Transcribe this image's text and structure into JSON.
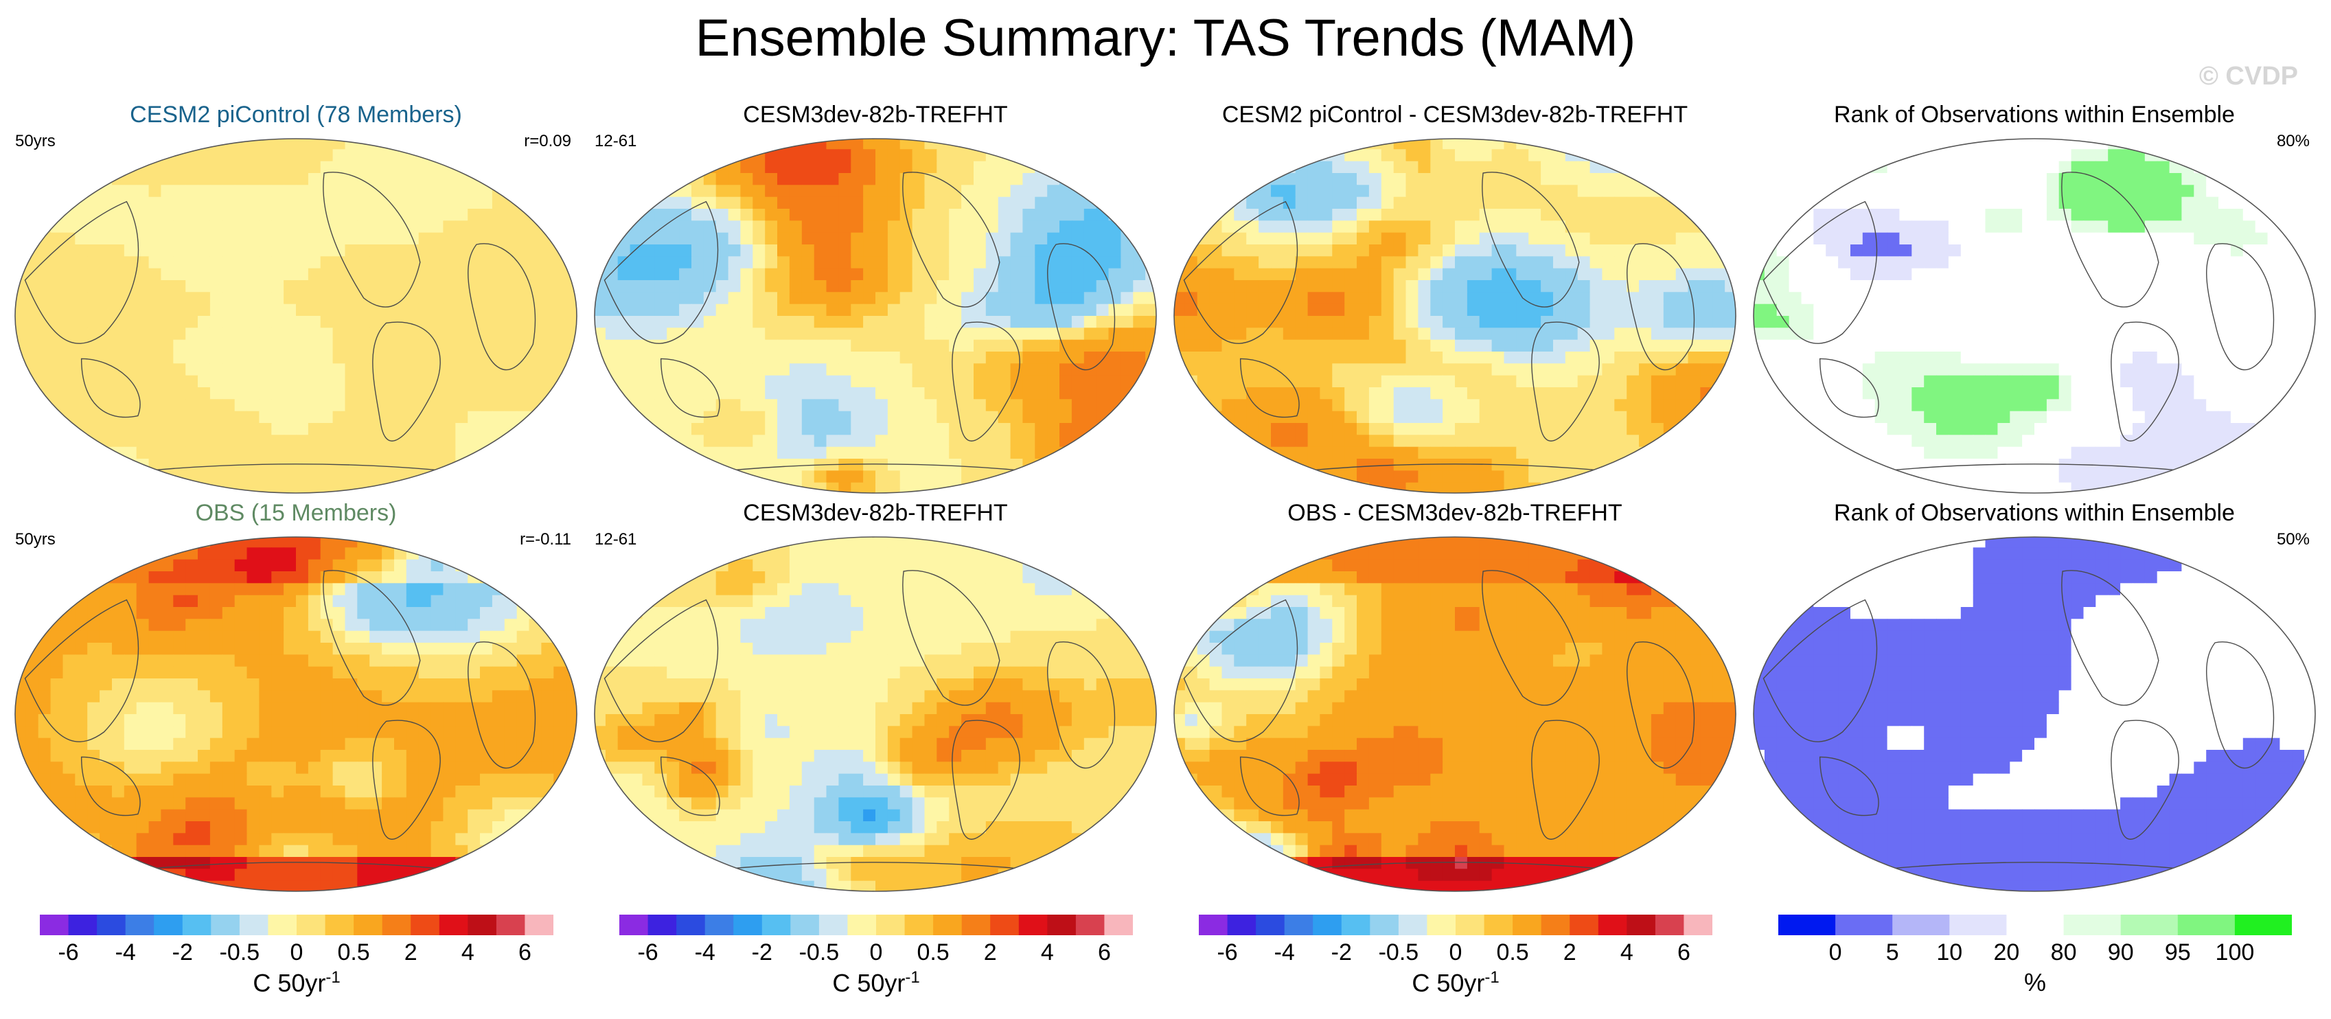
{
  "figure": {
    "title": "Ensemble Summary: TAS Trends (MAM)",
    "watermark": "© CVDP"
  },
  "colors": {
    "trend_palette": [
      "#8b2be2",
      "#3d22e0",
      "#2b4be0",
      "#3c7ee6",
      "#2e9ef0",
      "#56bff2",
      "#95d2ef",
      "#cfe6f2",
      "#fef6a6",
      "#fde37a",
      "#fcc43c",
      "#f9a61f",
      "#f57f18",
      "#ee4b16",
      "#e01018",
      "#be0f17",
      "#d8414f",
      "#f8b6bc"
    ],
    "rank_palette": [
      "#0019f0",
      "#6a6df4",
      "#b4b6f8",
      "#e2e3fc",
      "#ffffff",
      "#e2fde2",
      "#b4fab4",
      "#80f580",
      "#20f020"
    ]
  },
  "chart_data": [
    {
      "type": "heatmap",
      "row": 1,
      "col": 1,
      "title": "CESM2 piControl (78 Members)",
      "left_annotation": "50yrs",
      "right_annotation": "r=0.09",
      "variable": "TAS trend",
      "units": "C 50yr-1",
      "dominant_values": [
        0.0,
        -0.5
      ]
    },
    {
      "type": "heatmap",
      "row": 1,
      "col": 2,
      "title": "CESM3dev-82b-TREFHT",
      "left_annotation": "12-61",
      "right_annotation": "",
      "variable": "TAS trend",
      "units": "C 50yr-1",
      "dominant_values": [
        -2,
        -0.5,
        0.5,
        2
      ]
    },
    {
      "type": "heatmap",
      "row": 1,
      "col": 3,
      "title": "CESM2 piControl - CESM3dev-82b-TREFHT",
      "left_annotation": "",
      "right_annotation": "",
      "variable": "TAS trend difference",
      "units": "C 50yr-1",
      "dominant_values": [
        -2,
        -0.5,
        0.5,
        2
      ]
    },
    {
      "type": "heatmap",
      "row": 1,
      "col": 4,
      "title": "Rank of Observations within Ensemble",
      "left_annotation": "",
      "right_annotation": "80%",
      "variable": "rank",
      "units": "%",
      "dominant_values": [
        20,
        80
      ]
    },
    {
      "type": "heatmap",
      "row": 2,
      "col": 1,
      "title": "OBS (15 Members)",
      "left_annotation": "50yrs",
      "right_annotation": "r=-0.11",
      "variable": "TAS trend",
      "units": "C 50yr-1",
      "dominant_values": [
        0.5,
        2,
        4
      ]
    },
    {
      "type": "heatmap",
      "row": 2,
      "col": 2,
      "title": "CESM3dev-82b-TREFHT",
      "left_annotation": "12-61",
      "right_annotation": "",
      "variable": "TAS trend",
      "units": "C 50yr-1",
      "dominant_values": [
        -2,
        -0.5,
        0.5,
        2
      ]
    },
    {
      "type": "heatmap",
      "row": 2,
      "col": 3,
      "title": "OBS - CESM3dev-82b-TREFHT",
      "left_annotation": "",
      "right_annotation": "",
      "variable": "TAS trend difference",
      "units": "C 50yr-1",
      "dominant_values": [
        0.5,
        2,
        4
      ]
    },
    {
      "type": "heatmap",
      "row": 2,
      "col": 4,
      "title": "Rank of Observations within Ensemble",
      "left_annotation": "",
      "right_annotation": "50%",
      "variable": "rank",
      "units": "%",
      "dominant_values": [
        0,
        20,
        80
      ]
    }
  ],
  "colorbars": [
    {
      "type": "trend",
      "tick_labels": [
        "-6",
        "-4",
        "-2",
        "-0.5",
        "0",
        "0.5",
        "2",
        "4",
        "6"
      ],
      "label": "C 50yr",
      "exponent": "-1"
    },
    {
      "type": "trend",
      "tick_labels": [
        "-6",
        "-4",
        "-2",
        "-0.5",
        "0",
        "0.5",
        "2",
        "4",
        "6"
      ],
      "label": "C 50yr",
      "exponent": "-1"
    },
    {
      "type": "trend",
      "tick_labels": [
        "-6",
        "-4",
        "-2",
        "-0.5",
        "0",
        "0.5",
        "2",
        "4",
        "6"
      ],
      "label": "C 50yr",
      "exponent": "-1"
    },
    {
      "type": "rank",
      "tick_labels": [
        "0",
        "5",
        "10",
        "20",
        "80",
        "90",
        "95",
        "100"
      ],
      "label": "%",
      "exponent": ""
    }
  ]
}
